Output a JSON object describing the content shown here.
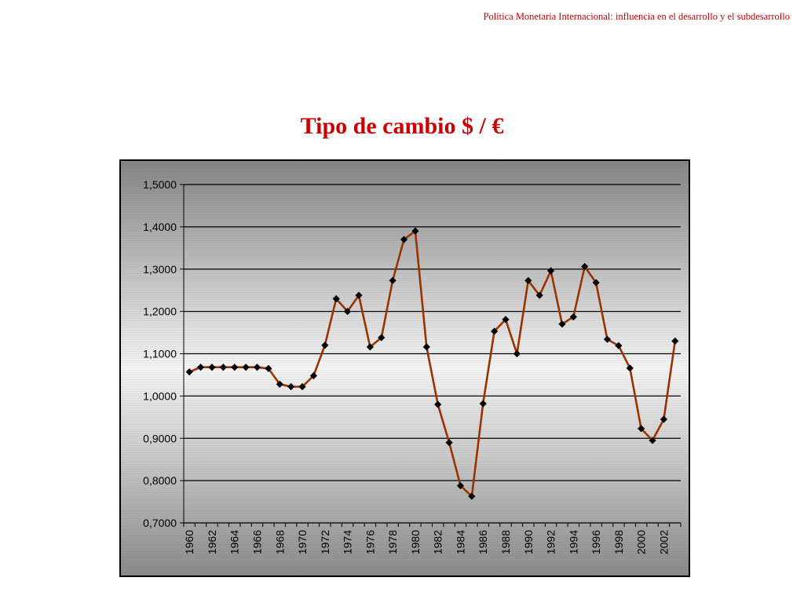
{
  "header": {
    "text": "Política Monetaria Internacional: influencia en el desarrollo y el subdesarrollo"
  },
  "colors": {
    "title": "#cc0000",
    "header": "#cc0000",
    "line": "#993300",
    "marker": "#000000",
    "gridline": "#000000"
  },
  "chart_data": {
    "type": "line",
    "title": "Tipo de cambio $ / €",
    "xlabel": "",
    "ylabel": "",
    "ylim": [
      0.7,
      1.5
    ],
    "grid": true,
    "legend": "none",
    "y_ticks": [
      "0,7000",
      "0,8000",
      "0,9000",
      "1,0000",
      "1,1000",
      "1,2000",
      "1,3000",
      "1,4000",
      "1,5000"
    ],
    "x_tick_labels": [
      "1960",
      "1962",
      "1964",
      "1966",
      "1968",
      "1970",
      "1972",
      "1974",
      "1976",
      "1978",
      "1980",
      "1982",
      "1984",
      "1986",
      "1988",
      "1990",
      "1992",
      "1994",
      "1996",
      "1998",
      "2000",
      "2002"
    ],
    "x": [
      1960,
      1961,
      1962,
      1963,
      1964,
      1965,
      1966,
      1967,
      1968,
      1969,
      1970,
      1971,
      1972,
      1973,
      1974,
      1975,
      1976,
      1977,
      1978,
      1979,
      1980,
      1981,
      1982,
      1983,
      1984,
      1985,
      1986,
      1987,
      1988,
      1989,
      1990,
      1991,
      1992,
      1993,
      1994,
      1995,
      1996,
      1997,
      1998,
      1999,
      2000,
      2001,
      2002,
      2003
    ],
    "series": [
      {
        "values": [
          1.057,
          1.068,
          1.068,
          1.068,
          1.068,
          1.068,
          1.068,
          1.065,
          1.028,
          1.022,
          1.022,
          1.048,
          1.12,
          1.23,
          1.2,
          1.238,
          1.116,
          1.138,
          1.273,
          1.37,
          1.39,
          1.116,
          0.98,
          0.89,
          0.788,
          0.763,
          0.982,
          1.153,
          1.181,
          1.1,
          1.273,
          1.238,
          1.296,
          1.17,
          1.187,
          1.306,
          1.268,
          1.134,
          1.119,
          1.066,
          0.923,
          0.895,
          0.945,
          1.13
        ]
      }
    ]
  }
}
